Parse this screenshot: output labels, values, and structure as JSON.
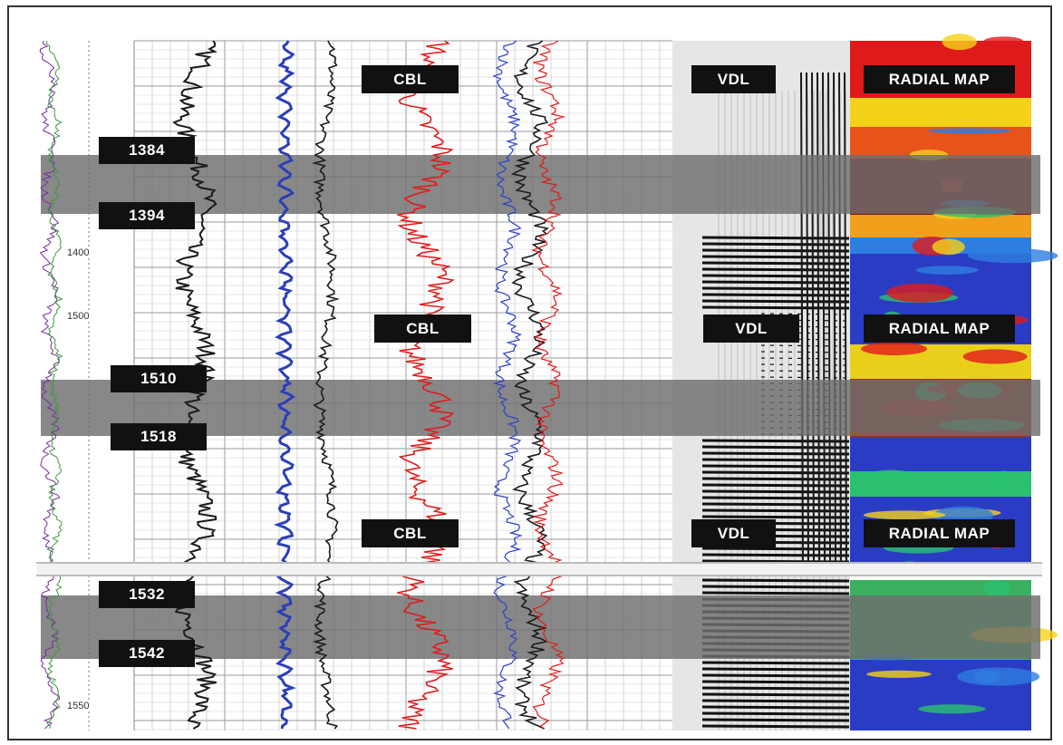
{
  "section_labels": {
    "top": {
      "cbl": "CBL",
      "vdl": "VDL",
      "radial": "RADIAL MAP"
    },
    "middle": {
      "cbl": "CBL",
      "vdl": "VDL",
      "radial": "RADIAL MAP"
    },
    "bottom": {
      "cbl": "CBL",
      "vdl": "VDL",
      "radial": "RADIAL MAP"
    }
  },
  "depth_markers": [
    "1384",
    "1394",
    "1510",
    "1518",
    "1532",
    "1542"
  ],
  "scale_depths": [
    "1400",
    "1500",
    "1550"
  ],
  "colors": {
    "band": "#6e6e6e",
    "gamma": "#1a1a1a",
    "noise": "#2b3fb8",
    "cbl": "#e01a1a",
    "amp_blue": "#2a40c8",
    "radial_blue": "#2a3cc4",
    "radial_red": "#e0161a"
  }
}
